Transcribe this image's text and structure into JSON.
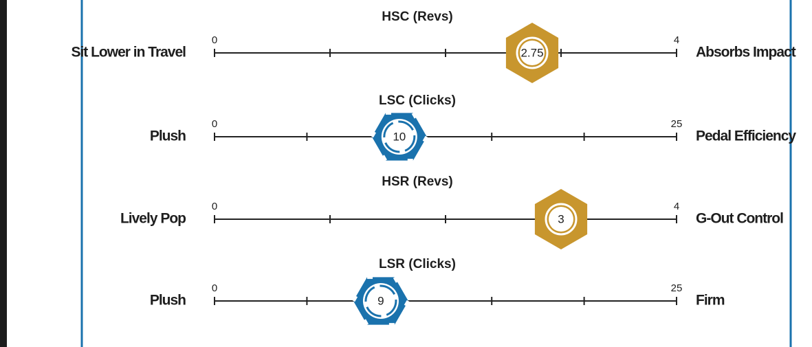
{
  "chart_data": [
    {
      "type": "slider",
      "title": "HSC  (Revs)",
      "left_label": "Sit Lower in Travel",
      "right_label": "Absorbs Impact",
      "xlim": [
        0,
        4
      ],
      "xticks": [
        0,
        4
      ],
      "minor_ticks": [
        1,
        2,
        3
      ],
      "value": 2.75,
      "color": "#c8962e",
      "marker": "solid"
    },
    {
      "type": "slider",
      "title": "LSC (Clicks)",
      "left_label": "Plush",
      "right_label": "Pedal Efficiency",
      "xlim": [
        0,
        25
      ],
      "xticks": [
        0,
        25
      ],
      "minor_ticks": [
        5,
        10,
        15,
        20
      ],
      "value": 10,
      "color": "#1a72ad",
      "marker": "broken"
    },
    {
      "type": "slider",
      "title": "HSR  (Revs)",
      "left_label": "Lively Pop",
      "right_label": "G-Out Control",
      "xlim": [
        0,
        4
      ],
      "xticks": [
        0,
        4
      ],
      "minor_ticks": [
        1,
        2,
        3
      ],
      "value": 3,
      "color": "#c8962e",
      "marker": "solid"
    },
    {
      "type": "slider",
      "title": "LSR (Clicks)",
      "left_label": "Plush",
      "right_label": "Firm",
      "xlim": [
        0,
        25
      ],
      "xticks": [
        0,
        25
      ],
      "minor_ticks": [
        5,
        10,
        15,
        20
      ],
      "value": 9,
      "color": "#1a72ad",
      "marker": "broken"
    }
  ]
}
